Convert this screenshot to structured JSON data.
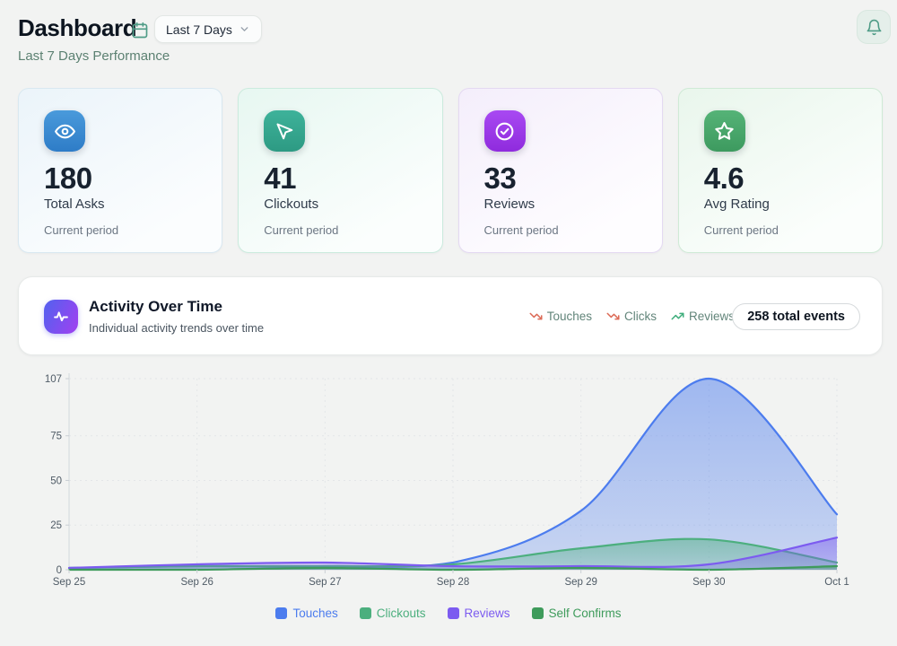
{
  "header": {
    "title": "Dashboard",
    "date_range": "Last 7 Days",
    "subtitle": "Last 7 Days Performance"
  },
  "stat_cards": [
    {
      "value": "180",
      "label": "Total Asks",
      "sublabel": "Current period",
      "icon": "eye-icon",
      "accent": "#3684CD"
    },
    {
      "value": "41",
      "label": "Clickouts",
      "sublabel": "Current period",
      "icon": "mouse-pointer-icon",
      "accent": "#35A68E"
    },
    {
      "value": "33",
      "label": "Reviews",
      "sublabel": "Current period",
      "icon": "check-circle-icon",
      "accent": "#9B3AE8"
    },
    {
      "value": "4.6",
      "label": "Avg Rating",
      "sublabel": "Current period",
      "icon": "star-icon",
      "accent": "#48A76B"
    }
  ],
  "activity": {
    "title": "Activity Over Time",
    "subtitle": "Individual activity trends over time",
    "trends": [
      {
        "label": "Touches",
        "direction": "down",
        "color": "#DC6B57"
      },
      {
        "label": "Clicks",
        "direction": "down",
        "color": "#DC6B57"
      },
      {
        "label": "Reviews",
        "direction": "up",
        "color": "#3FAE7C"
      }
    ],
    "total_badge": "258 total events"
  },
  "chart_data": {
    "type": "area",
    "title": "Activity Over Time",
    "x": [
      "Sep 25",
      "Sep 26",
      "Sep 27",
      "Sep 28",
      "Sep 29",
      "Sep 30",
      "Oct 1"
    ],
    "series": [
      {
        "name": "Touches",
        "color": "#4C7CEE",
        "values": [
          1,
          2,
          2,
          4,
          33,
          107,
          31
        ]
      },
      {
        "name": "Clickouts",
        "color": "#4CAF7E",
        "values": [
          1,
          2,
          2,
          3,
          12,
          17,
          4
        ]
      },
      {
        "name": "Reviews",
        "color": "#7C5BF0",
        "values": [
          1,
          3,
          4,
          2,
          2,
          3,
          18
        ]
      },
      {
        "name": "Self Confirms",
        "color": "#3E9B5B",
        "values": [
          0,
          0,
          1,
          0,
          1,
          0,
          2
        ]
      }
    ],
    "yticks": [
      0,
      25,
      50,
      75,
      107
    ],
    "ylim": [
      0,
      107
    ],
    "grid": true,
    "legend_position": "bottom"
  }
}
